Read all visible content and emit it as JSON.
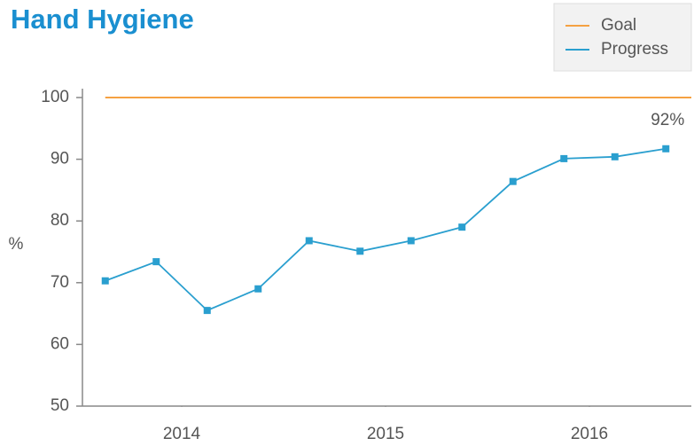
{
  "chart_data": {
    "type": "line",
    "title": "Hand Hygiene",
    "ylabel": "%",
    "x": [
      2013.625,
      2013.875,
      2014.125,
      2014.375,
      2014.625,
      2014.875,
      2015.125,
      2015.375,
      2015.625,
      2015.875,
      2016.125,
      2016.375
    ],
    "series": [
      {
        "name": "Progress",
        "color": "#2a9fcf",
        "values": [
          70.3,
          73.4,
          65.5,
          69.0,
          76.8,
          75.1,
          76.8,
          79.0,
          86.4,
          90.1,
          90.4,
          91.7
        ],
        "value_labels": [
          null,
          null,
          null,
          null,
          null,
          null,
          null,
          null,
          null,
          null,
          null,
          "92%"
        ]
      }
    ],
    "goal": {
      "name": "Goal",
      "value": 100,
      "color": "#f5a142"
    },
    "xlim": [
      2013.5,
      2016.5
    ],
    "xticks": [
      {
        "value": 2014,
        "label": "2014"
      },
      {
        "value": 2015,
        "label": "2015"
      },
      {
        "value": 2016,
        "label": "2016"
      }
    ],
    "ylim": [
      50,
      100
    ],
    "yticks": [
      50,
      60,
      70,
      80,
      90,
      100
    ],
    "legend": "upper right"
  }
}
